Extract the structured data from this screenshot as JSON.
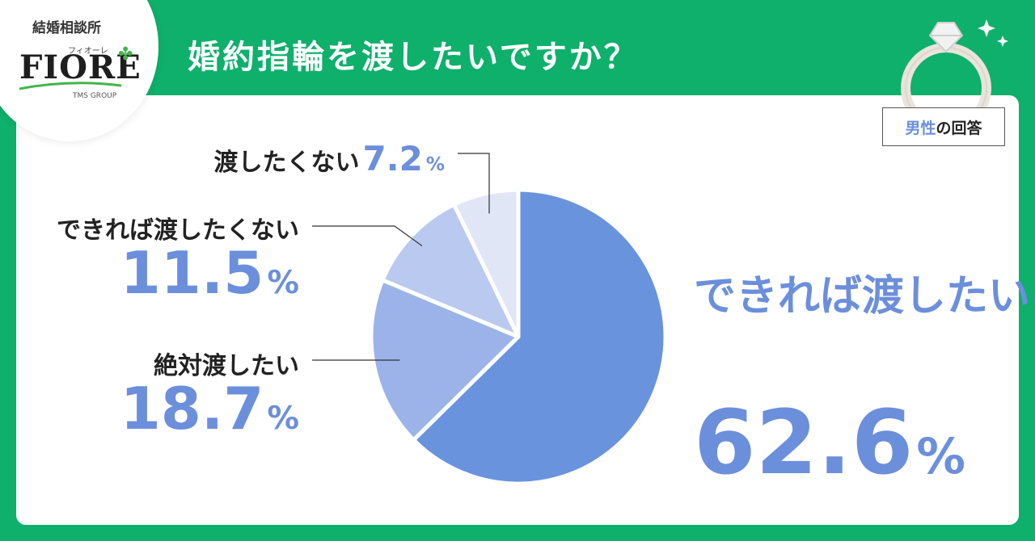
{
  "header": {
    "title": "婚約指輪を渡したいですか？"
  },
  "logo": {
    "top": "結婚相談所",
    "kana": "フィオーレ",
    "name": "FIORE",
    "group": "TMS GROUP"
  },
  "badge": {
    "prefix": "男性",
    "suffix": "の回答"
  },
  "colors": {
    "background": "#0eb06b",
    "accent": "#6c8fdc"
  },
  "chart_data": {
    "type": "pie",
    "unit": "%",
    "slices": [
      {
        "label": "できれば渡したい",
        "value": 62.6,
        "display": "62.6",
        "color": "#6a93de"
      },
      {
        "label": "絶対渡したい",
        "value": 18.7,
        "display": "18.7",
        "color": "#9bb3e9"
      },
      {
        "label": "できれば渡したくない",
        "value": 11.5,
        "display": "11.5",
        "color": "#bac9f0"
      },
      {
        "label": "渡したくない",
        "value": 7.2,
        "display": "7.2",
        "color": "#e1e6f7"
      }
    ]
  }
}
